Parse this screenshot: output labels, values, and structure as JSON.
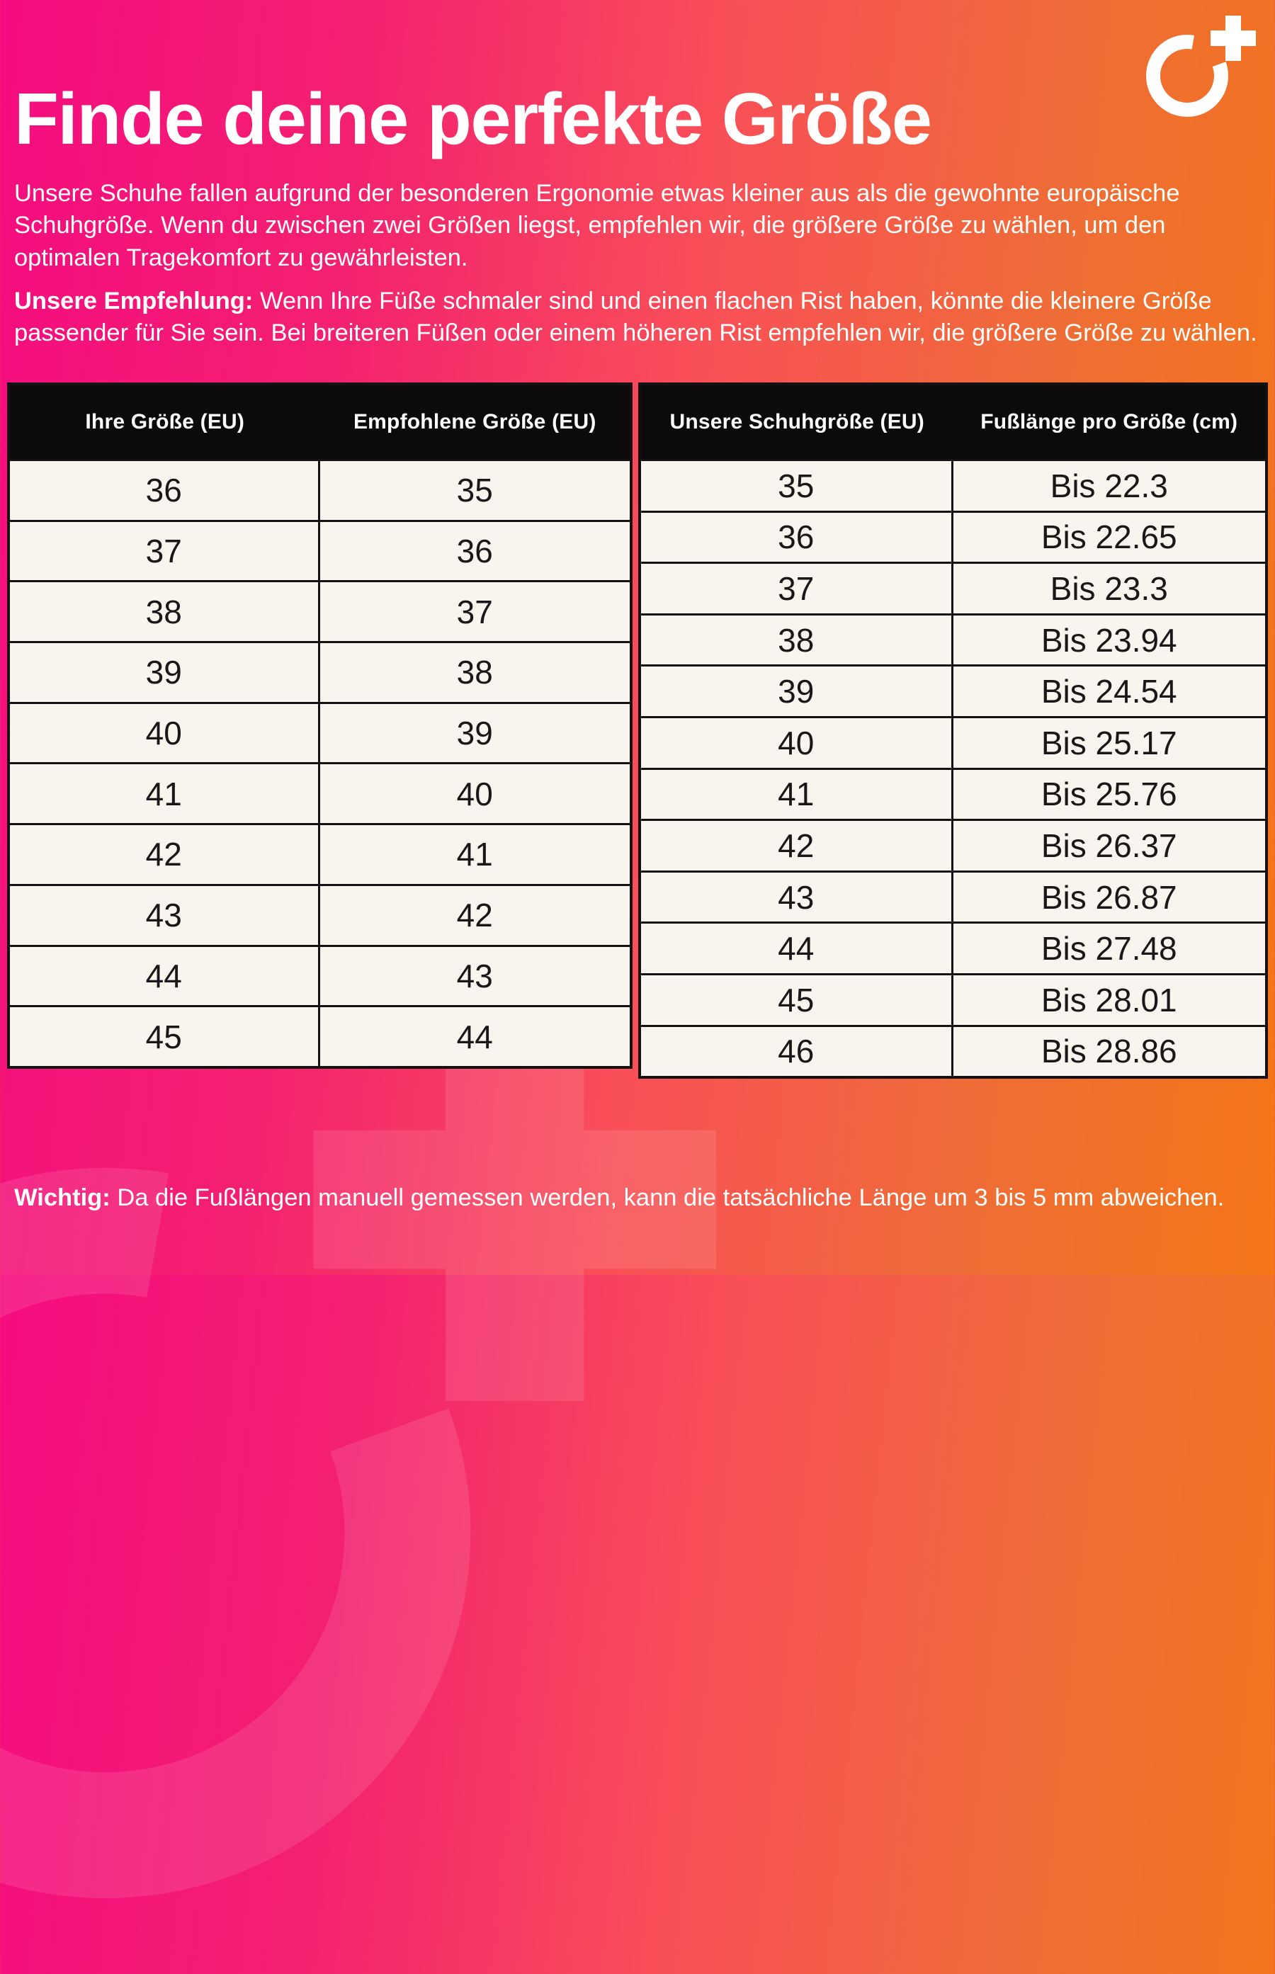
{
  "page": {
    "title": "Finde deine perfekte Größe",
    "intro": "Unsere Schuhe fallen aufgrund der besonderen Ergonomie etwas kleiner aus als die gewohnte europäische Schuhgröße. Wenn du zwischen zwei Größen liegst, empfehlen wir, die größere Größe zu wählen, um den optimalen Tragekomfort zu gewährleisten.",
    "recommendation_label": "Unsere Empfehlung:",
    "recommendation_text": " Wenn Ihre Füße schmaler sind und einen flachen Rist haben, könnte die kleinere Größe passender für Sie sein. Bei breiteren Füßen oder einem höheren Rist empfehlen wir, die größere Größe zu wählen.",
    "footer_label": "Wichtig:",
    "footer_text": " Da die Fußlängen manuell gemessen werden, kann die tatsächliche Länge um 3 bis 5 mm abweichen."
  },
  "size_table": {
    "headers": [
      "Ihre Größe (EU)",
      "Empfohlene Größe (EU)"
    ],
    "rows": [
      [
        "36",
        "35"
      ],
      [
        "37",
        "36"
      ],
      [
        "38",
        "37"
      ],
      [
        "39",
        "38"
      ],
      [
        "40",
        "39"
      ],
      [
        "41",
        "40"
      ],
      [
        "42",
        "41"
      ],
      [
        "43",
        "42"
      ],
      [
        "44",
        "43"
      ],
      [
        "45",
        "44"
      ]
    ]
  },
  "length_table": {
    "headers": [
      "Unsere Schuhgröße (EU)",
      "Fußlänge pro Größe (cm)"
    ],
    "rows": [
      [
        "35",
        "Bis 22.3"
      ],
      [
        "36",
        "Bis 22.65"
      ],
      [
        "37",
        "Bis 23.3"
      ],
      [
        "38",
        "Bis 23.94"
      ],
      [
        "39",
        "Bis 24.54"
      ],
      [
        "40",
        "Bis 25.17"
      ],
      [
        "41",
        "Bis 25.76"
      ],
      [
        "42",
        "Bis 26.37"
      ],
      [
        "43",
        "Bis 26.87"
      ],
      [
        "44",
        "Bis 27.48"
      ],
      [
        "45",
        "Bis 28.01"
      ],
      [
        "46",
        "Bis 28.86"
      ]
    ]
  },
  "icons": {
    "brand_logo": "o-plus-ring-logo",
    "watermark": "o-plus-ring-logo-watermark"
  },
  "colors": {
    "gradient_start": "#f50c80",
    "gradient_mid": "#f94f58",
    "gradient_end": "#f47617",
    "table_header_bg": "#0c0a0b",
    "table_header_text": "#ffffff",
    "table_cell_bg": "#faf4ef",
    "table_cell_text": "#1b1617",
    "table_border": "#151112",
    "body_text": "#ffffff"
  }
}
